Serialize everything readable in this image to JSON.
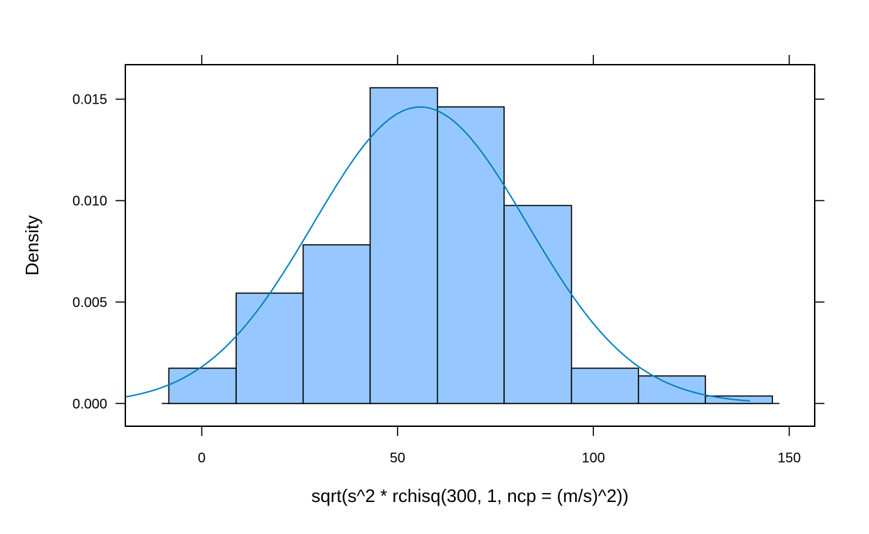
{
  "chart_data": {
    "type": "bar",
    "subtype": "histogram",
    "title": "",
    "xlabel": "sqrt(s^2 * rchisq(300, 1, ncp = (m/s)^2))",
    "ylabel": "Density",
    "xlim": [
      -19.5,
      156.5
    ],
    "ylim": [
      -0.00112,
      0.0167
    ],
    "x_ticks": [
      0,
      50,
      100,
      150
    ],
    "x_tick_labels": [
      "0",
      "50",
      "100",
      "150"
    ],
    "y_ticks": [
      0,
      0.005,
      0.01,
      0.015
    ],
    "y_tick_labels": [
      "0.000",
      "0.005",
      "0.010",
      "0.015"
    ],
    "grid": false,
    "bins": [
      {
        "from": -8.4,
        "to": 8.8,
        "density": 0.00174
      },
      {
        "from": 8.8,
        "to": 25.9,
        "density": 0.00544
      },
      {
        "from": 25.9,
        "to": 43.0,
        "density": 0.00782
      },
      {
        "from": 43.0,
        "to": 60.2,
        "density": 0.01556
      },
      {
        "from": 60.2,
        "to": 77.2,
        "density": 0.01462
      },
      {
        "from": 77.2,
        "to": 94.4,
        "density": 0.00976
      },
      {
        "from": 94.4,
        "to": 111.5,
        "density": 0.00174
      },
      {
        "from": 111.5,
        "to": 128.6,
        "density": 0.00136
      },
      {
        "from": 128.6,
        "to": 145.7,
        "density": 0.00037
      }
    ],
    "baseline_range": [
      -10.2,
      147.5
    ],
    "density_curve": {
      "type": "normal",
      "mean": 55.8,
      "sd": 27.3,
      "x_range": [
        -19.5,
        140.0
      ]
    },
    "colors": {
      "bar_fill": "#96C8FF",
      "bar_stroke": "#000000",
      "curve": "#0080C0",
      "axis": "#000000"
    }
  }
}
